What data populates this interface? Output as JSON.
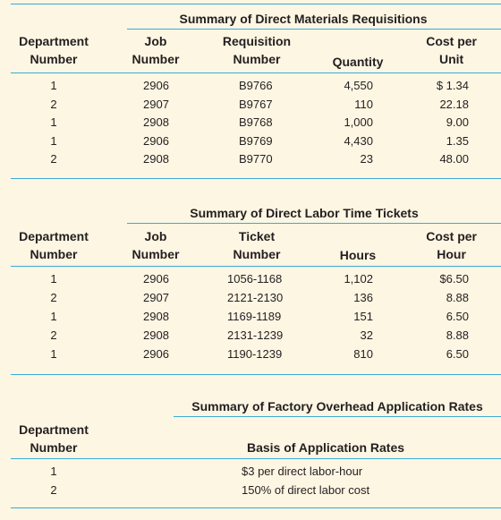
{
  "materials": {
    "title": "Summary of Direct Materials Requisitions",
    "headers": {
      "department": [
        "Department",
        "Number"
      ],
      "job": [
        "Job",
        "Number"
      ],
      "requisition": [
        "Requisition",
        "Number"
      ],
      "quantity": "Quantity",
      "cost": [
        "Cost per",
        "Unit"
      ]
    },
    "rows": [
      {
        "dept": "1",
        "job": "2906",
        "req": "B9766",
        "qty": "4,550",
        "cost": "$ 1.34"
      },
      {
        "dept": "2",
        "job": "2907",
        "req": "B9767",
        "qty": "110",
        "cost": "22.18"
      },
      {
        "dept": "1",
        "job": "2908",
        "req": "B9768",
        "qty": "1,000",
        "cost": "9.00"
      },
      {
        "dept": "1",
        "job": "2906",
        "req": "B9769",
        "qty": "4,430",
        "cost": "1.35"
      },
      {
        "dept": "2",
        "job": "2908",
        "req": "B9770",
        "qty": "23",
        "cost": "48.00"
      }
    ]
  },
  "labor": {
    "title": "Summary of Direct Labor Time Tickets",
    "headers": {
      "department": [
        "Department",
        "Number"
      ],
      "job": [
        "Job",
        "Number"
      ],
      "ticket": [
        "Ticket",
        "Number"
      ],
      "hours": "Hours",
      "cost": [
        "Cost per",
        "Hour"
      ]
    },
    "rows": [
      {
        "dept": "1",
        "job": "2906",
        "ticket": "1056-1168",
        "hours": "1,102",
        "cost": "$6.50"
      },
      {
        "dept": "2",
        "job": "2907",
        "ticket": "2121-2130",
        "hours": "136",
        "cost": "8.88"
      },
      {
        "dept": "1",
        "job": "2908",
        "ticket": "1169-1189",
        "hours": "151",
        "cost": "6.50"
      },
      {
        "dept": "2",
        "job": "2908",
        "ticket": "2131-1239",
        "hours": "32",
        "cost": "8.88"
      },
      {
        "dept": "1",
        "job": "2906",
        "ticket": "1190-1239",
        "hours": "810",
        "cost": "6.50"
      }
    ]
  },
  "overhead": {
    "title": "Summary of Factory Overhead Application Rates",
    "headers": {
      "department": [
        "Department",
        "Number"
      ],
      "basis": "Basis of Application Rates"
    },
    "rows": [
      {
        "dept": "1",
        "basis": "$3 per direct labor-hour"
      },
      {
        "dept": "2",
        "basis": "150% of direct labor cost"
      }
    ]
  },
  "colors": {
    "background": "#fdf6e3",
    "rule": "#3aaad6",
    "text": "#231f20"
  }
}
